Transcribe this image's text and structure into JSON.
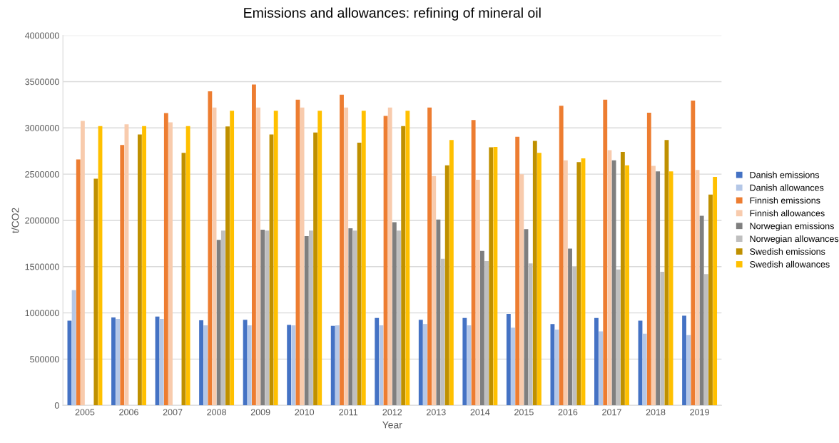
{
  "chart_data": {
    "type": "bar",
    "title": "Emissions and allowances: refining of mineral oil",
    "xlabel": "Year",
    "ylabel": "t/CO2",
    "categories": [
      "2005",
      "2006",
      "2007",
      "2008",
      "2009",
      "2010",
      "2011",
      "2012",
      "2013",
      "2014",
      "2015",
      "2016",
      "2017",
      "2018",
      "2019"
    ],
    "series": [
      {
        "name": "Danish emissions",
        "color": "#4472c4",
        "values": [
          915000,
          950000,
          960000,
          920000,
          925000,
          870000,
          860000,
          945000,
          925000,
          945000,
          990000,
          880000,
          945000,
          915000,
          970000
        ]
      },
      {
        "name": "Danish allowances",
        "color": "#b4c7e7",
        "values": [
          1245000,
          935000,
          935000,
          865000,
          865000,
          865000,
          865000,
          865000,
          880000,
          865000,
          840000,
          820000,
          800000,
          775000,
          760000
        ]
      },
      {
        "name": "Finnish emissions",
        "color": "#ed7d31",
        "values": [
          2660000,
          2815000,
          3160000,
          3395000,
          3470000,
          3305000,
          3360000,
          3130000,
          3220000,
          3085000,
          2905000,
          3240000,
          3305000,
          3165000,
          3295000
        ]
      },
      {
        "name": "Finnish allowances",
        "color": "#f8cbad",
        "values": [
          3075000,
          3040000,
          3060000,
          3220000,
          3220000,
          3220000,
          3220000,
          3220000,
          2480000,
          2440000,
          2500000,
          2650000,
          2760000,
          2590000,
          2545000
        ]
      },
      {
        "name": "Norwegian emissions",
        "color": "#7f7f7f",
        "values": [
          null,
          null,
          null,
          1790000,
          1900000,
          1830000,
          1915000,
          1980000,
          2010000,
          1670000,
          1905000,
          1695000,
          2650000,
          2530000,
          2050000
        ]
      },
      {
        "name": "Norwegian allowances",
        "color": "#bfbfbf",
        "values": [
          null,
          null,
          null,
          1890000,
          1890000,
          1890000,
          1890000,
          1890000,
          1585000,
          1560000,
          1535000,
          1500000,
          1470000,
          1445000,
          1420000
        ]
      },
      {
        "name": "Swedish emissions",
        "color": "#bf9000",
        "values": [
          2450000,
          2930000,
          2730000,
          3015000,
          2930000,
          2950000,
          2840000,
          3020000,
          2595000,
          2790000,
          2860000,
          2630000,
          2740000,
          2870000,
          2280000
        ]
      },
      {
        "name": "Swedish allowances",
        "color": "#ffc000",
        "values": [
          3020000,
          3020000,
          3020000,
          3185000,
          3185000,
          3185000,
          3185000,
          3185000,
          2870000,
          2795000,
          2730000,
          2670000,
          2595000,
          2530000,
          2470000
        ]
      }
    ],
    "ylim": [
      0,
      4000000
    ],
    "yticks": [
      0,
      500000,
      1000000,
      1500000,
      2000000,
      2500000,
      3000000,
      3500000,
      4000000
    ],
    "grid": "y",
    "legend": "right"
  }
}
